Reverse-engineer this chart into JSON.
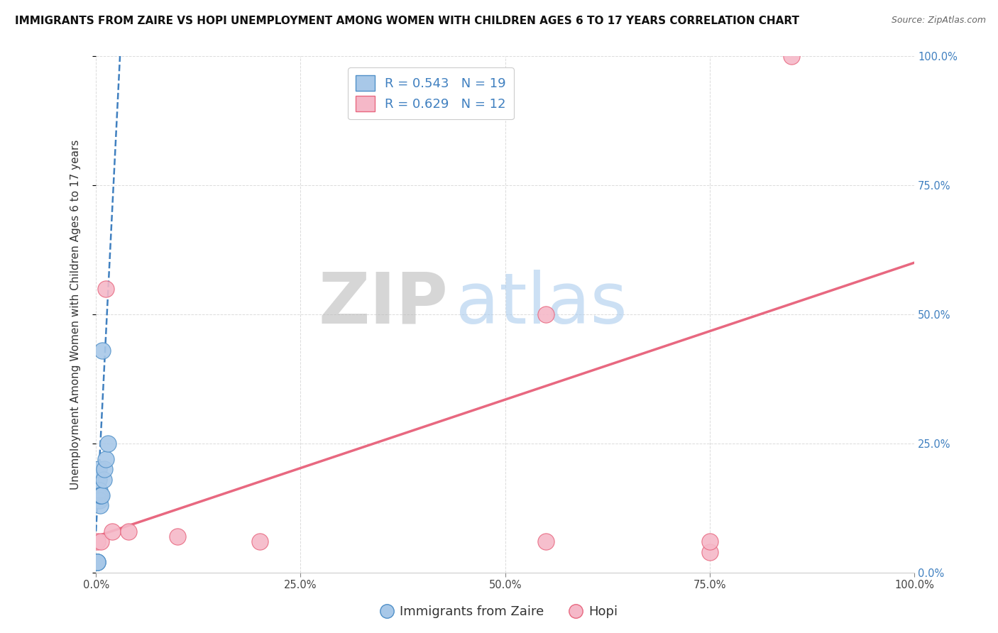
{
  "title": "IMMIGRANTS FROM ZAIRE VS HOPI UNEMPLOYMENT AMONG WOMEN WITH CHILDREN AGES 6 TO 17 YEARS CORRELATION CHART",
  "source": "Source: ZipAtlas.com",
  "ylabel": "Unemployment Among Women with Children Ages 6 to 17 years",
  "xlim": [
    0,
    1.0
  ],
  "ylim": [
    0,
    1.0
  ],
  "watermark_zip": "ZIP",
  "watermark_atlas": "atlas",
  "blue_label": "Immigrants from Zaire",
  "pink_label": "Hopi",
  "blue_R": 0.543,
  "blue_N": 19,
  "pink_R": 0.629,
  "pink_N": 12,
  "blue_color": "#A8C8E8",
  "pink_color": "#F5B8C8",
  "blue_edge_color": "#5090C8",
  "pink_edge_color": "#E86880",
  "blue_line_color": "#4080C0",
  "pink_line_color": "#E86880",
  "blue_points_x": [
    0.001,
    0.001,
    0.002,
    0.002,
    0.002,
    0.003,
    0.003,
    0.003,
    0.004,
    0.004,
    0.005,
    0.005,
    0.006,
    0.007,
    0.008,
    0.009,
    0.01,
    0.012,
    0.015
  ],
  "blue_points_y": [
    0.02,
    0.02,
    0.02,
    0.02,
    0.02,
    0.15,
    0.18,
    0.2,
    0.14,
    0.16,
    0.13,
    0.15,
    0.15,
    0.15,
    0.43,
    0.18,
    0.2,
    0.22,
    0.25
  ],
  "pink_points_x": [
    0.002,
    0.006,
    0.012,
    0.02,
    0.04,
    0.1,
    0.2,
    0.55,
    0.75,
    0.85,
    0.55,
    0.75
  ],
  "pink_points_y": [
    0.06,
    0.06,
    0.55,
    0.08,
    0.08,
    0.07,
    0.06,
    0.5,
    0.04,
    1.0,
    0.06,
    0.06
  ],
  "blue_trend_x": [
    0.0,
    0.03
  ],
  "blue_trend_y": [
    0.08,
    1.02
  ],
  "pink_trend_x": [
    0.0,
    1.0
  ],
  "pink_trend_y": [
    0.07,
    0.6
  ],
  "title_fontsize": 11,
  "axis_label_fontsize": 11,
  "tick_fontsize": 10.5,
  "legend_fontsize": 13,
  "watermark_fontsize_zip": 72,
  "watermark_fontsize_atlas": 72,
  "background_color": "#FFFFFF",
  "grid_color": "#CCCCCC",
  "xticks": [
    0,
    0.25,
    0.5,
    0.75,
    1.0
  ],
  "yticks": [
    0,
    0.25,
    0.5,
    0.75,
    1.0
  ],
  "xtick_labels": [
    "0.0%",
    "25.0%",
    "50.0%",
    "75.0%",
    "100.0%"
  ],
  "ytick_labels": [
    "0.0%",
    "25.0%",
    "50.0%",
    "75.0%",
    "100.0%"
  ],
  "right_tick_color": "#4080C0"
}
